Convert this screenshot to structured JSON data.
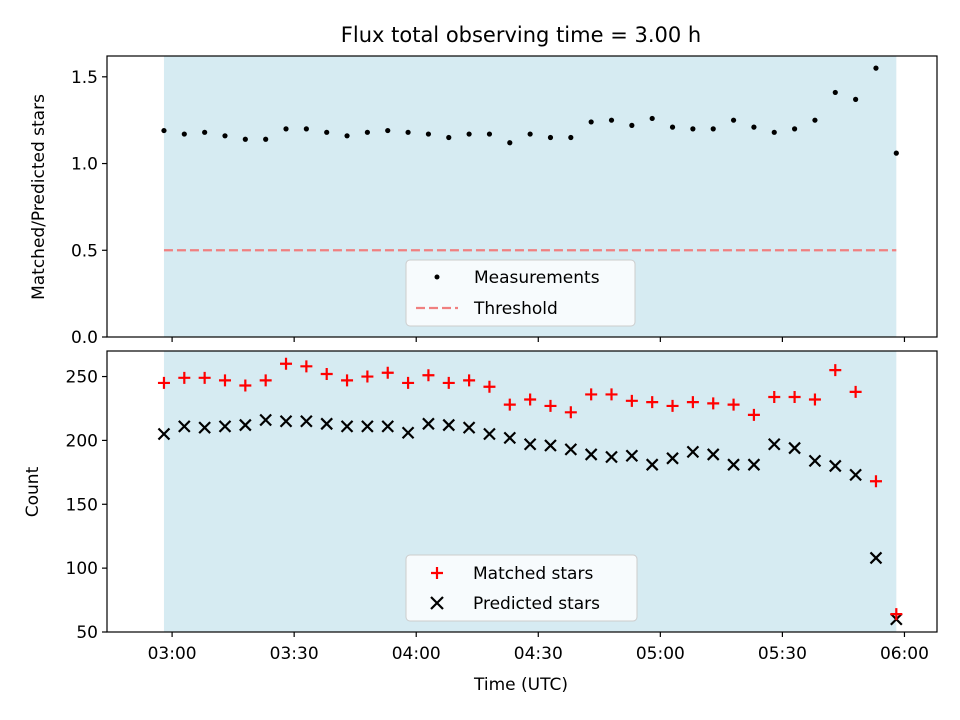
{
  "chart_data": {
    "title": "Flux total observing time = 3.00 h",
    "xlabel": "Time (UTC)",
    "x_ticks": [
      "03:00",
      "03:30",
      "04:00",
      "04:30",
      "05:00",
      "05:30",
      "06:00"
    ],
    "shaded_span": [
      "02:58",
      "05:58"
    ],
    "colors": {
      "shade": "#add8e6",
      "threshold": "#f08080",
      "matched": "#ff0000",
      "predicted": "#000000",
      "measurement": "#000000"
    },
    "top": {
      "type": "scatter",
      "ylabel": "Matched/Predicted stars",
      "ylim": [
        0,
        1.62
      ],
      "y_ticks": [
        "0.0",
        "0.5",
        "1.0",
        "1.5"
      ],
      "threshold": 0.5,
      "legend_placement": "lower center",
      "series": [
        {
          "name": "Measurements",
          "marker": "dot",
          "times": [
            "02:58",
            "03:03",
            "03:08",
            "03:13",
            "03:18",
            "03:23",
            "03:28",
            "03:33",
            "03:38",
            "03:43",
            "03:48",
            "03:53",
            "03:58",
            "04:03",
            "04:08",
            "04:13",
            "04:18",
            "04:23",
            "04:28",
            "04:33",
            "04:38",
            "04:43",
            "04:48",
            "04:53",
            "04:58",
            "05:03",
            "05:08",
            "05:13",
            "05:18",
            "05:23",
            "05:28",
            "05:33",
            "05:38",
            "05:43",
            "05:48",
            "05:53",
            "05:58"
          ],
          "values": [
            1.19,
            1.17,
            1.18,
            1.16,
            1.14,
            1.14,
            1.2,
            1.2,
            1.18,
            1.16,
            1.18,
            1.19,
            1.18,
            1.17,
            1.15,
            1.17,
            1.17,
            1.12,
            1.17,
            1.15,
            1.15,
            1.24,
            1.25,
            1.22,
            1.26,
            1.21,
            1.2,
            1.2,
            1.25,
            1.21,
            1.18,
            1.2,
            1.25,
            1.41,
            1.37,
            1.55,
            1.06
          ]
        },
        {
          "name": "Threshold",
          "marker": "dashed-line",
          "times": [
            "02:58",
            "05:58"
          ],
          "values": [
            0.5,
            0.5
          ]
        }
      ]
    },
    "bottom": {
      "type": "scatter",
      "ylabel": "Count",
      "ylim": [
        50,
        270
      ],
      "y_ticks": [
        "50",
        "100",
        "150",
        "200",
        "250"
      ],
      "legend_placement": "lower center",
      "series": [
        {
          "name": "Matched stars",
          "marker": "plus",
          "times": [
            "02:58",
            "03:03",
            "03:08",
            "03:13",
            "03:18",
            "03:23",
            "03:28",
            "03:33",
            "03:38",
            "03:43",
            "03:48",
            "03:53",
            "03:58",
            "04:03",
            "04:08",
            "04:13",
            "04:18",
            "04:23",
            "04:28",
            "04:33",
            "04:38",
            "04:43",
            "04:48",
            "04:53",
            "04:58",
            "05:03",
            "05:08",
            "05:13",
            "05:18",
            "05:23",
            "05:28",
            "05:33",
            "05:38",
            "05:43",
            "05:48",
            "05:53",
            "05:58"
          ],
          "values": [
            245,
            249,
            249,
            247,
            243,
            247,
            260,
            258,
            252,
            247,
            250,
            253,
            245,
            251,
            245,
            247,
            242,
            228,
            232,
            227,
            222,
            236,
            236,
            231,
            230,
            227,
            230,
            229,
            228,
            220,
            234,
            234,
            232,
            255,
            238,
            168,
            64
          ]
        },
        {
          "name": "Predicted stars",
          "marker": "x",
          "times": [
            "02:58",
            "03:03",
            "03:08",
            "03:13",
            "03:18",
            "03:23",
            "03:28",
            "03:33",
            "03:38",
            "03:43",
            "03:48",
            "03:53",
            "03:58",
            "04:03",
            "04:08",
            "04:13",
            "04:18",
            "04:23",
            "04:28",
            "04:33",
            "04:38",
            "04:43",
            "04:48",
            "04:53",
            "04:58",
            "05:03",
            "05:08",
            "05:13",
            "05:18",
            "05:23",
            "05:28",
            "05:33",
            "05:38",
            "05:43",
            "05:48",
            "05:53",
            "05:58"
          ],
          "values": [
            205,
            211,
            210,
            211,
            212,
            216,
            215,
            215,
            213,
            211,
            211,
            211,
            206,
            213,
            212,
            210,
            205,
            202,
            197,
            196,
            193,
            189,
            187,
            188,
            181,
            186,
            191,
            189,
            181,
            181,
            197,
            194,
            184,
            180,
            173,
            108,
            60
          ]
        }
      ]
    }
  }
}
